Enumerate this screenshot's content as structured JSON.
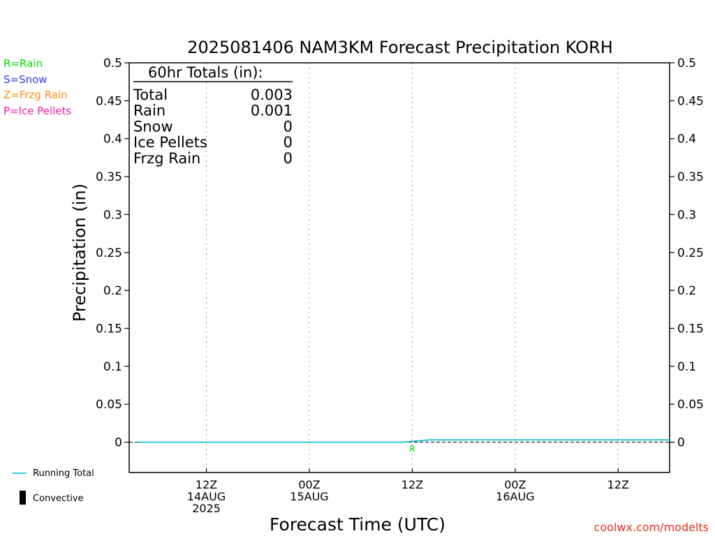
{
  "chart_data": {
    "type": "line",
    "title": "2025081406 NAM3KM Forecast Precipitation KORH",
    "xlabel": "Forecast Time (UTC)",
    "ylabel": "Precipitation (in)",
    "ylim": [
      -0.04,
      0.5
    ],
    "yticks": [
      "0",
      "0.05",
      "0.1",
      "0.15",
      "0.2",
      "0.25",
      "0.3",
      "0.35",
      "0.4",
      "0.45",
      "0.5"
    ],
    "xlim_hours": [
      -3,
      60
    ],
    "xticks": [
      {
        "hour": 6,
        "line1": "12Z",
        "line2": "14AUG",
        "line3": "2025"
      },
      {
        "hour": 18,
        "line1": "00Z",
        "line2": "15AUG",
        "line3": ""
      },
      {
        "hour": 30,
        "line1": "12Z",
        "line2": "",
        "line3": ""
      },
      {
        "hour": 42,
        "line1": "00Z",
        "line2": "16AUG",
        "line3": ""
      },
      {
        "hour": 54,
        "line1": "12Z",
        "line2": "",
        "line3": ""
      }
    ],
    "grid": "vertical dotted",
    "series": [
      {
        "name": "Running Total",
        "color": "#00b4c8",
        "x": [
          -2,
          29,
          30,
          31,
          32,
          60
        ],
        "y": [
          0,
          0,
          0.001,
          0.002,
          0.003,
          0.003
        ]
      }
    ],
    "precip_type_marks": [
      {
        "hour": 30,
        "label": "R",
        "color": "#00dd00"
      }
    ],
    "convective_bars": []
  },
  "totals_box": {
    "header": "60hr Totals (in):",
    "rows": [
      {
        "label": "Total",
        "value": "0.003"
      },
      {
        "label": "Rain",
        "value": "0.001"
      },
      {
        "label": "Snow",
        "value": "0"
      },
      {
        "label": "Ice Pellets",
        "value": "0"
      },
      {
        "label": "Frzg Rain",
        "value": "0"
      }
    ]
  },
  "type_legend": [
    {
      "text": "R=Rain",
      "color": "#00dd00"
    },
    {
      "text": "S=Snow",
      "color": "#3333ff"
    },
    {
      "text": "Z=Frzg Rain",
      "color": "#ff8c1a"
    },
    {
      "text": "P=Ice Pellets",
      "color": "#ff1aa0"
    }
  ],
  "line_legend": {
    "running_total": "Running Total",
    "convective": "Convective"
  },
  "credit": "coolwx.com/modelts",
  "colors": {
    "credit": "#e0301e",
    "running_total": "#00b4c8"
  }
}
